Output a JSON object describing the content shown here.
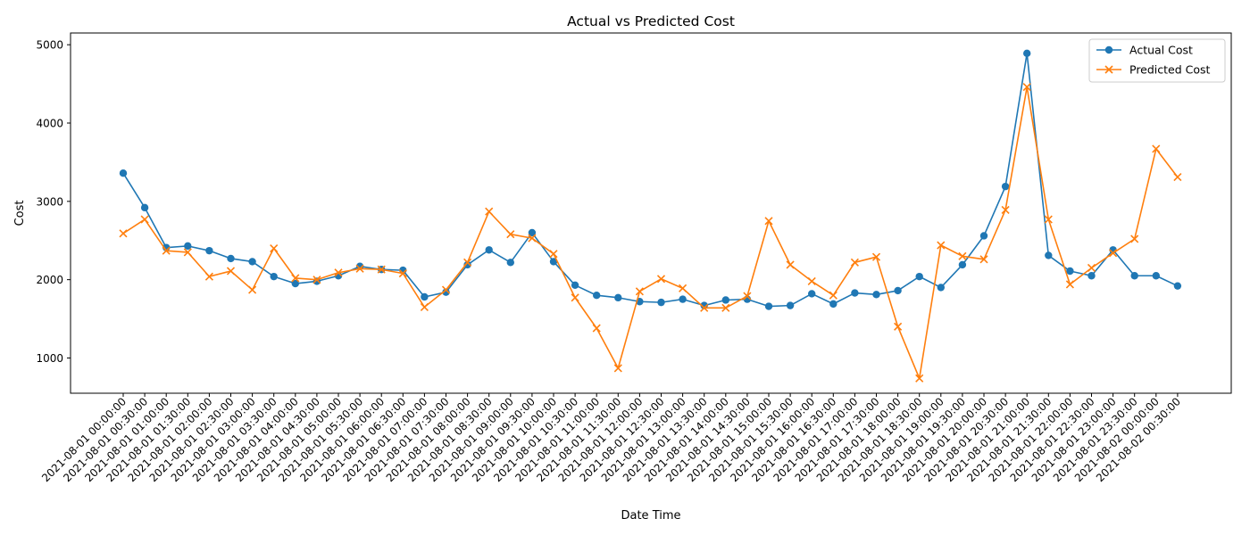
{
  "chart_data": {
    "type": "line",
    "title": "Actual vs Predicted Cost",
    "xlabel": "Date Time",
    "ylabel": "Cost",
    "ylim": [
      550,
      5150
    ],
    "yticks": [
      1000,
      2000,
      3000,
      4000,
      5000
    ],
    "grid": false,
    "legend_position": "top-right",
    "x": [
      "2021-08-01 00:00:00",
      "2021-08-01 00:30:00",
      "2021-08-01 01:00:00",
      "2021-08-01 01:30:00",
      "2021-08-01 02:00:00",
      "2021-08-01 02:30:00",
      "2021-08-01 03:00:00",
      "2021-08-01 03:30:00",
      "2021-08-01 04:00:00",
      "2021-08-01 04:30:00",
      "2021-08-01 05:00:00",
      "2021-08-01 05:30:00",
      "2021-08-01 06:00:00",
      "2021-08-01 06:30:00",
      "2021-08-01 07:00:00",
      "2021-08-01 07:30:00",
      "2021-08-01 08:00:00",
      "2021-08-01 08:30:00",
      "2021-08-01 09:00:00",
      "2021-08-01 09:30:00",
      "2021-08-01 10:00:00",
      "2021-08-01 10:30:00",
      "2021-08-01 11:00:00",
      "2021-08-01 11:30:00",
      "2021-08-01 12:00:00",
      "2021-08-01 12:30:00",
      "2021-08-01 13:00:00",
      "2021-08-01 13:30:00",
      "2021-08-01 14:00:00",
      "2021-08-01 14:30:00",
      "2021-08-01 15:00:00",
      "2021-08-01 15:30:00",
      "2021-08-01 16:00:00",
      "2021-08-01 16:30:00",
      "2021-08-01 17:00:00",
      "2021-08-01 17:30:00",
      "2021-08-01 18:00:00",
      "2021-08-01 18:30:00",
      "2021-08-01 19:00:00",
      "2021-08-01 19:30:00",
      "2021-08-01 20:00:00",
      "2021-08-01 20:30:00",
      "2021-08-01 21:00:00",
      "2021-08-01 21:30:00",
      "2021-08-01 22:00:00",
      "2021-08-01 22:30:00",
      "2021-08-01 23:00:00",
      "2021-08-01 23:30:00",
      "2021-08-02 00:00:00",
      "2021-08-02 00:30:00"
    ],
    "series": [
      {
        "name": "Actual Cost",
        "color": "#1f77b4",
        "marker": "circle",
        "values": [
          3360,
          2920,
          2410,
          2430,
          2370,
          2270,
          2230,
          2040,
          1950,
          1980,
          2050,
          2170,
          2130,
          2120,
          1780,
          1840,
          2190,
          2380,
          2220,
          2600,
          2230,
          1930,
          1800,
          1770,
          1720,
          1710,
          1750,
          1670,
          1740,
          1750,
          1660,
          1670,
          1820,
          1690,
          1830,
          1810,
          1860,
          2040,
          1900,
          2190,
          2560,
          3190,
          4890,
          2310,
          2110,
          2050,
          2380,
          2050,
          2050,
          1920
        ]
      },
      {
        "name": "Predicted Cost",
        "color": "#ff7f0e",
        "marker": "x",
        "values": [
          2590,
          2770,
          2370,
          2350,
          2040,
          2110,
          1870,
          2400,
          2020,
          2000,
          2090,
          2140,
          2130,
          2080,
          1650,
          1870,
          2220,
          2870,
          2580,
          2530,
          2330,
          1770,
          1380,
          870,
          1850,
          2010,
          1890,
          1640,
          1640,
          1790,
          2750,
          2190,
          1980,
          1800,
          2220,
          2290,
          1400,
          740,
          2440,
          2300,
          2260,
          2890,
          4460,
          2770,
          1940,
          2150,
          2340,
          2520,
          3670,
          3310
        ]
      }
    ]
  }
}
